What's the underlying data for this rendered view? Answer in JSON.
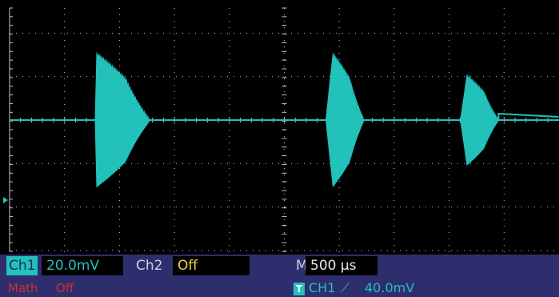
{
  "channel1": {
    "label": "Ch1",
    "scale": "20.0mV"
  },
  "channel2": {
    "label": "Ch2",
    "state": "Off"
  },
  "timebase": {
    "prefix": "M",
    "value": "500 µs"
  },
  "math": {
    "label": "Math",
    "state": "Off"
  },
  "trigger": {
    "badge": "T",
    "source": "CH1",
    "edge_symbol": "⟋",
    "level": "40.0mV"
  },
  "colors": {
    "trace": "#22c1b9",
    "grid": "#c8c8c8",
    "statusbar": "#2e2e6e",
    "ch2_value": "#e8d23a",
    "math": "#d03030"
  },
  "waveform": {
    "bursts": [
      {
        "start_div": 1.55,
        "attack_end_div": 1.58,
        "decay_end_div": 2.55,
        "amplitude_div": 1.55
      },
      {
        "start_div": 5.75,
        "attack_end_div": 5.88,
        "decay_end_div": 6.45,
        "amplitude_div": 1.55
      },
      {
        "start_div": 8.2,
        "attack_end_div": 8.32,
        "decay_end_div": 8.9,
        "amplitude_div": 1.05
      }
    ]
  }
}
